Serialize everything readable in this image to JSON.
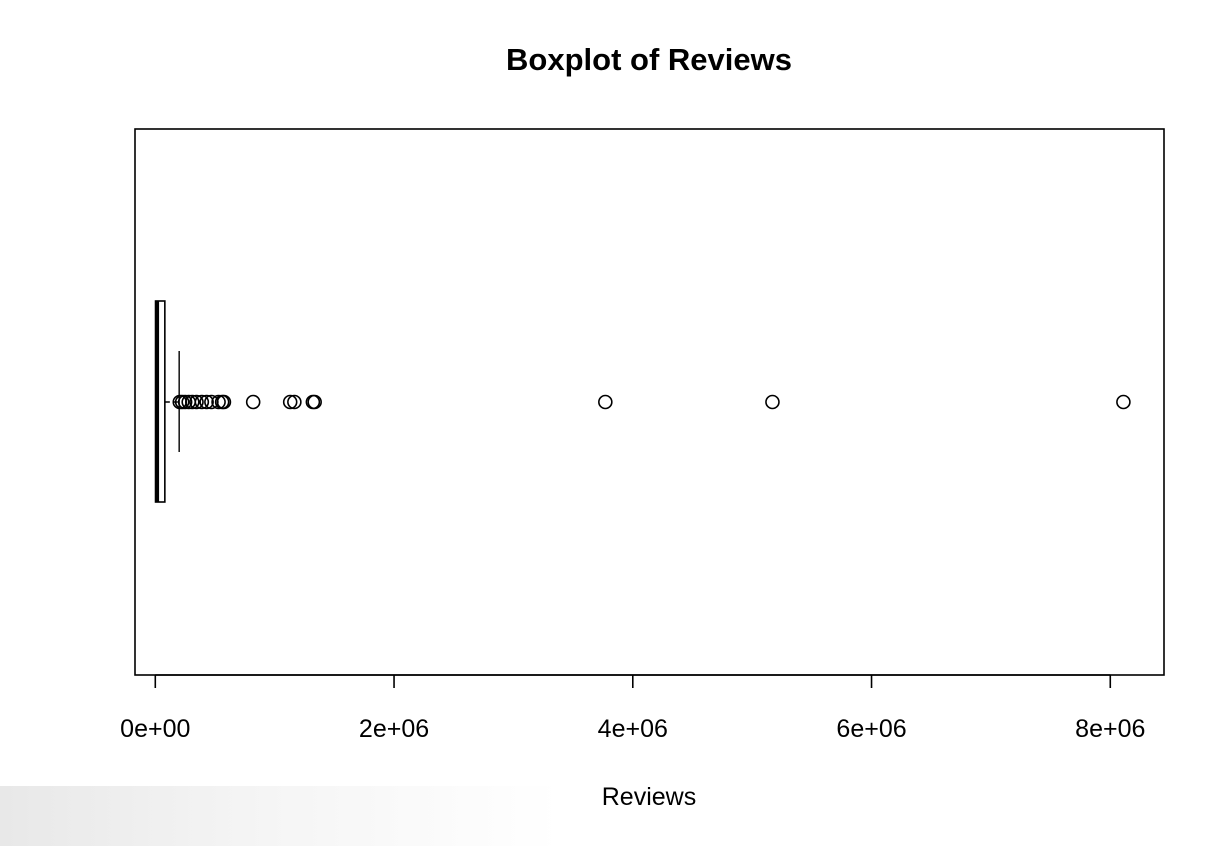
{
  "chart_data": {
    "type": "boxplot",
    "orientation": "horizontal",
    "title": "Boxplot of Reviews",
    "xlabel": "Reviews",
    "ylabel": "",
    "xlim": [
      -170000,
      8450000
    ],
    "x_ticks": [
      {
        "value": 0,
        "label": "0e+00"
      },
      {
        "value": 2000000,
        "label": "2e+06"
      },
      {
        "value": 4000000,
        "label": "4e+06"
      },
      {
        "value": 6000000,
        "label": "6e+06"
      },
      {
        "value": 8000000,
        "label": "8e+06"
      }
    ],
    "grid": false,
    "stats": {
      "min": 0,
      "q1": 2000,
      "median": 15000,
      "q3": 80000,
      "whisker_high": 200000
    },
    "outliers": [
      205000,
      225000,
      250000,
      280000,
      310000,
      345000,
      390000,
      430000,
      470000,
      530000,
      560000,
      575000,
      820000,
      1130000,
      1165000,
      1320000,
      1335000,
      3770000,
      5170000,
      8110000
    ]
  }
}
